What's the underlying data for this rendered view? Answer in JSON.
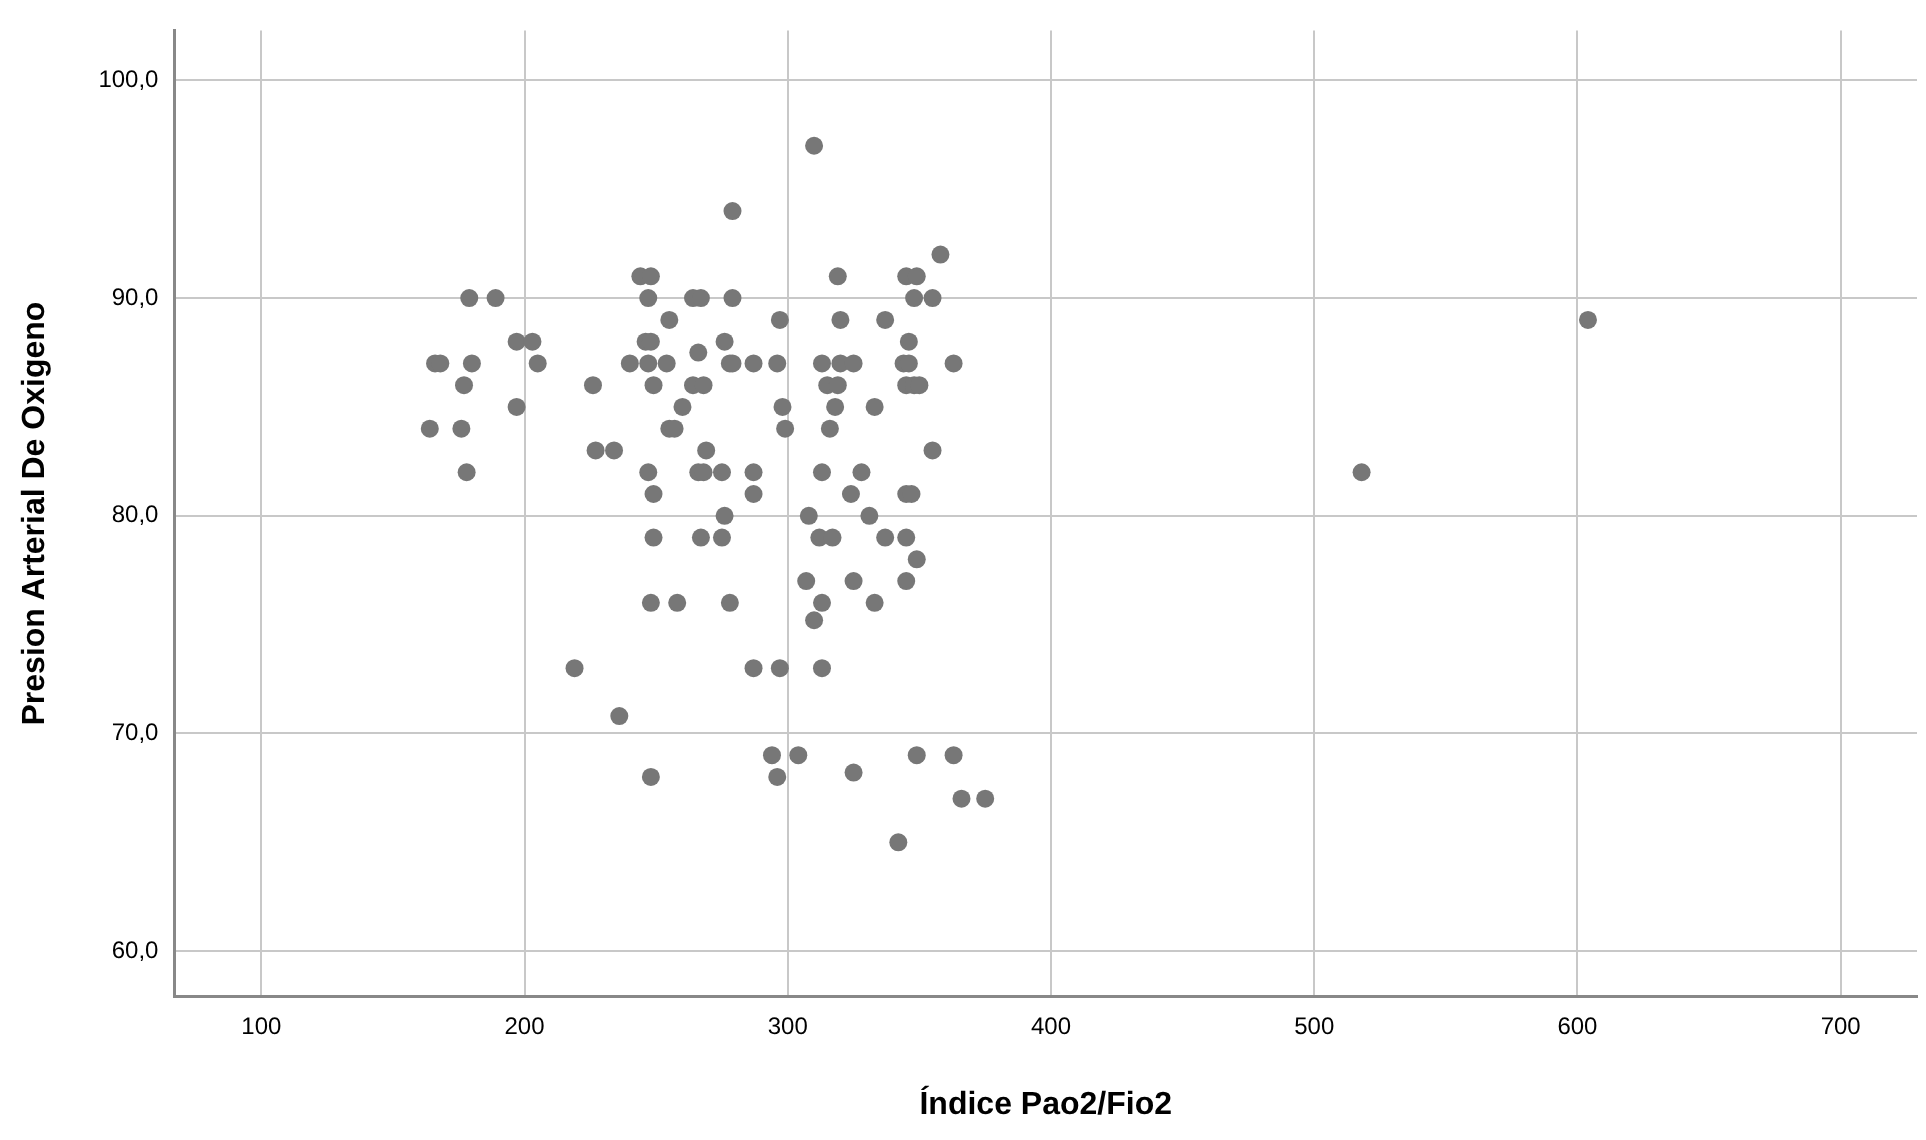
{
  "chart_data": {
    "type": "scatter",
    "xlabel": "Índice Pao2/Fio2",
    "ylabel": "Presion Arterial De Oxigeno",
    "xlim": [
      67,
      729
    ],
    "ylim": [
      57.9,
      102.3
    ],
    "xticks": [
      100,
      200,
      300,
      400,
      500,
      600,
      700
    ],
    "yticks": [
      {
        "value": 60,
        "label": "60,0"
      },
      {
        "value": 70,
        "label": "70,0"
      },
      {
        "value": 80,
        "label": "80,0"
      },
      {
        "value": 90,
        "label": "90,0"
      },
      {
        "value": 100,
        "label": "100,0"
      }
    ],
    "grid": true,
    "legend": false,
    "marker": "circle",
    "series": [
      {
        "color": "#777777",
        "x": [
          164,
          166,
          168,
          179,
          189,
          177,
          180,
          176,
          178,
          197,
          203,
          205,
          197,
          219,
          226,
          227,
          234,
          236,
          244,
          248,
          247,
          246,
          248,
          240,
          247,
          249,
          255,
          254,
          255,
          257,
          260,
          247,
          249,
          249,
          248,
          258,
          248,
          264,
          267,
          266,
          264,
          268,
          269,
          266,
          268,
          267,
          276,
          279,
          279,
          278,
          279,
          275,
          276,
          275,
          278,
          287,
          287,
          287,
          287,
          297,
          294,
          296,
          304,
          297,
          296,
          298,
          299,
          310,
          319,
          320,
          313,
          320,
          325,
          315,
          319,
          318,
          316,
          313,
          328,
          324,
          308,
          331,
          312,
          317,
          337,
          307,
          325,
          310,
          313,
          333,
          313,
          325,
          337,
          333,
          342,
          345,
          349,
          348,
          355,
          358,
          346,
          344,
          346,
          345,
          348,
          350,
          355,
          345,
          347,
          345,
          349,
          345,
          349,
          363,
          363,
          366,
          375,
          518,
          604
        ],
        "values": [
          84,
          87,
          87,
          90,
          90,
          86,
          87,
          84,
          82,
          88,
          88,
          87,
          85,
          73,
          86,
          83,
          83,
          70.8,
          91,
          91,
          90,
          88,
          88,
          87,
          87,
          86,
          89,
          87,
          84,
          84,
          85,
          82,
          81,
          79,
          76,
          76,
          68,
          90,
          90,
          87.5,
          86,
          86,
          83,
          82,
          82,
          79,
          88,
          94,
          90,
          87,
          87,
          82,
          80,
          79,
          76,
          87,
          82,
          81,
          73,
          73,
          69,
          68,
          69,
          89,
          87,
          85,
          84,
          97,
          91,
          89,
          87,
          87,
          87,
          86,
          86,
          85,
          84,
          82,
          82,
          81,
          80,
          80,
          79,
          79,
          79,
          77,
          77,
          75.2,
          76,
          76,
          73,
          68.2,
          89,
          85,
          65,
          91,
          91,
          90,
          90,
          92,
          88,
          87,
          87,
          86,
          86,
          86,
          83,
          81,
          81,
          79,
          78,
          77,
          69,
          87,
          69,
          67,
          67,
          82,
          89
        ]
      }
    ]
  }
}
